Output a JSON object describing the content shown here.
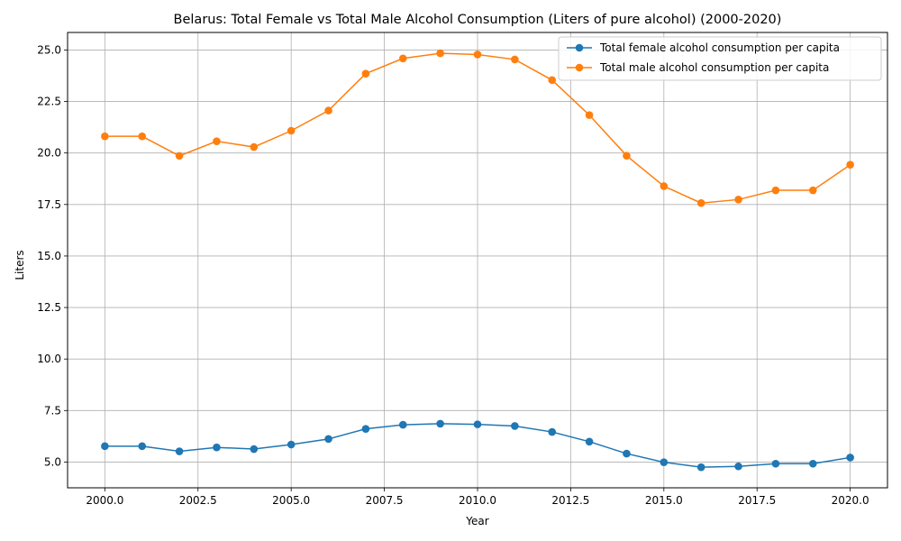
{
  "chart_data": {
    "type": "line",
    "title": "Belarus: Total Female vs Total Male Alcohol Consumption (Liters of pure alcohol) (2000-2020)",
    "xlabel": "Year",
    "ylabel": "Liters",
    "x": [
      2000,
      2001,
      2002,
      2003,
      2004,
      2005,
      2006,
      2007,
      2008,
      2009,
      2010,
      2011,
      2012,
      2013,
      2014,
      2015,
      2016,
      2017,
      2018,
      2019,
      2020
    ],
    "xlim": [
      1999,
      2021
    ],
    "ylim": [
      3.75,
      25.85
    ],
    "x_ticks": [
      "2000.0",
      "2002.5",
      "2005.0",
      "2007.5",
      "2010.0",
      "2012.5",
      "2015.0",
      "2017.5",
      "2020.0"
    ],
    "x_tick_values": [
      2000,
      2002.5,
      2005,
      2007.5,
      2010,
      2012.5,
      2015,
      2017.5,
      2020
    ],
    "y_ticks": [
      "5.0",
      "7.5",
      "10.0",
      "12.5",
      "15.0",
      "17.5",
      "20.0",
      "22.5",
      "25.0"
    ],
    "y_tick_values": [
      5,
      7.5,
      10,
      12.5,
      15,
      17.5,
      20,
      22.5,
      25
    ],
    "grid": true,
    "legend_position": "top-right",
    "series": [
      {
        "name": "Total female alcohol consumption per capita",
        "color": "#1f77b4",
        "values": [
          5.77,
          5.77,
          5.52,
          5.71,
          5.63,
          5.85,
          6.12,
          6.61,
          6.81,
          6.86,
          6.83,
          6.75,
          6.46,
          5.99,
          5.41,
          4.99,
          4.75,
          4.79,
          4.92,
          4.92,
          5.22
        ]
      },
      {
        "name": "Total male alcohol consumption per capita",
        "color": "#ff7f0e",
        "values": [
          20.81,
          20.81,
          19.86,
          20.57,
          20.29,
          21.08,
          22.06,
          23.85,
          24.59,
          24.84,
          24.78,
          24.54,
          23.54,
          21.84,
          19.87,
          18.39,
          17.57,
          17.74,
          18.19,
          18.19,
          19.43
        ]
      }
    ]
  }
}
